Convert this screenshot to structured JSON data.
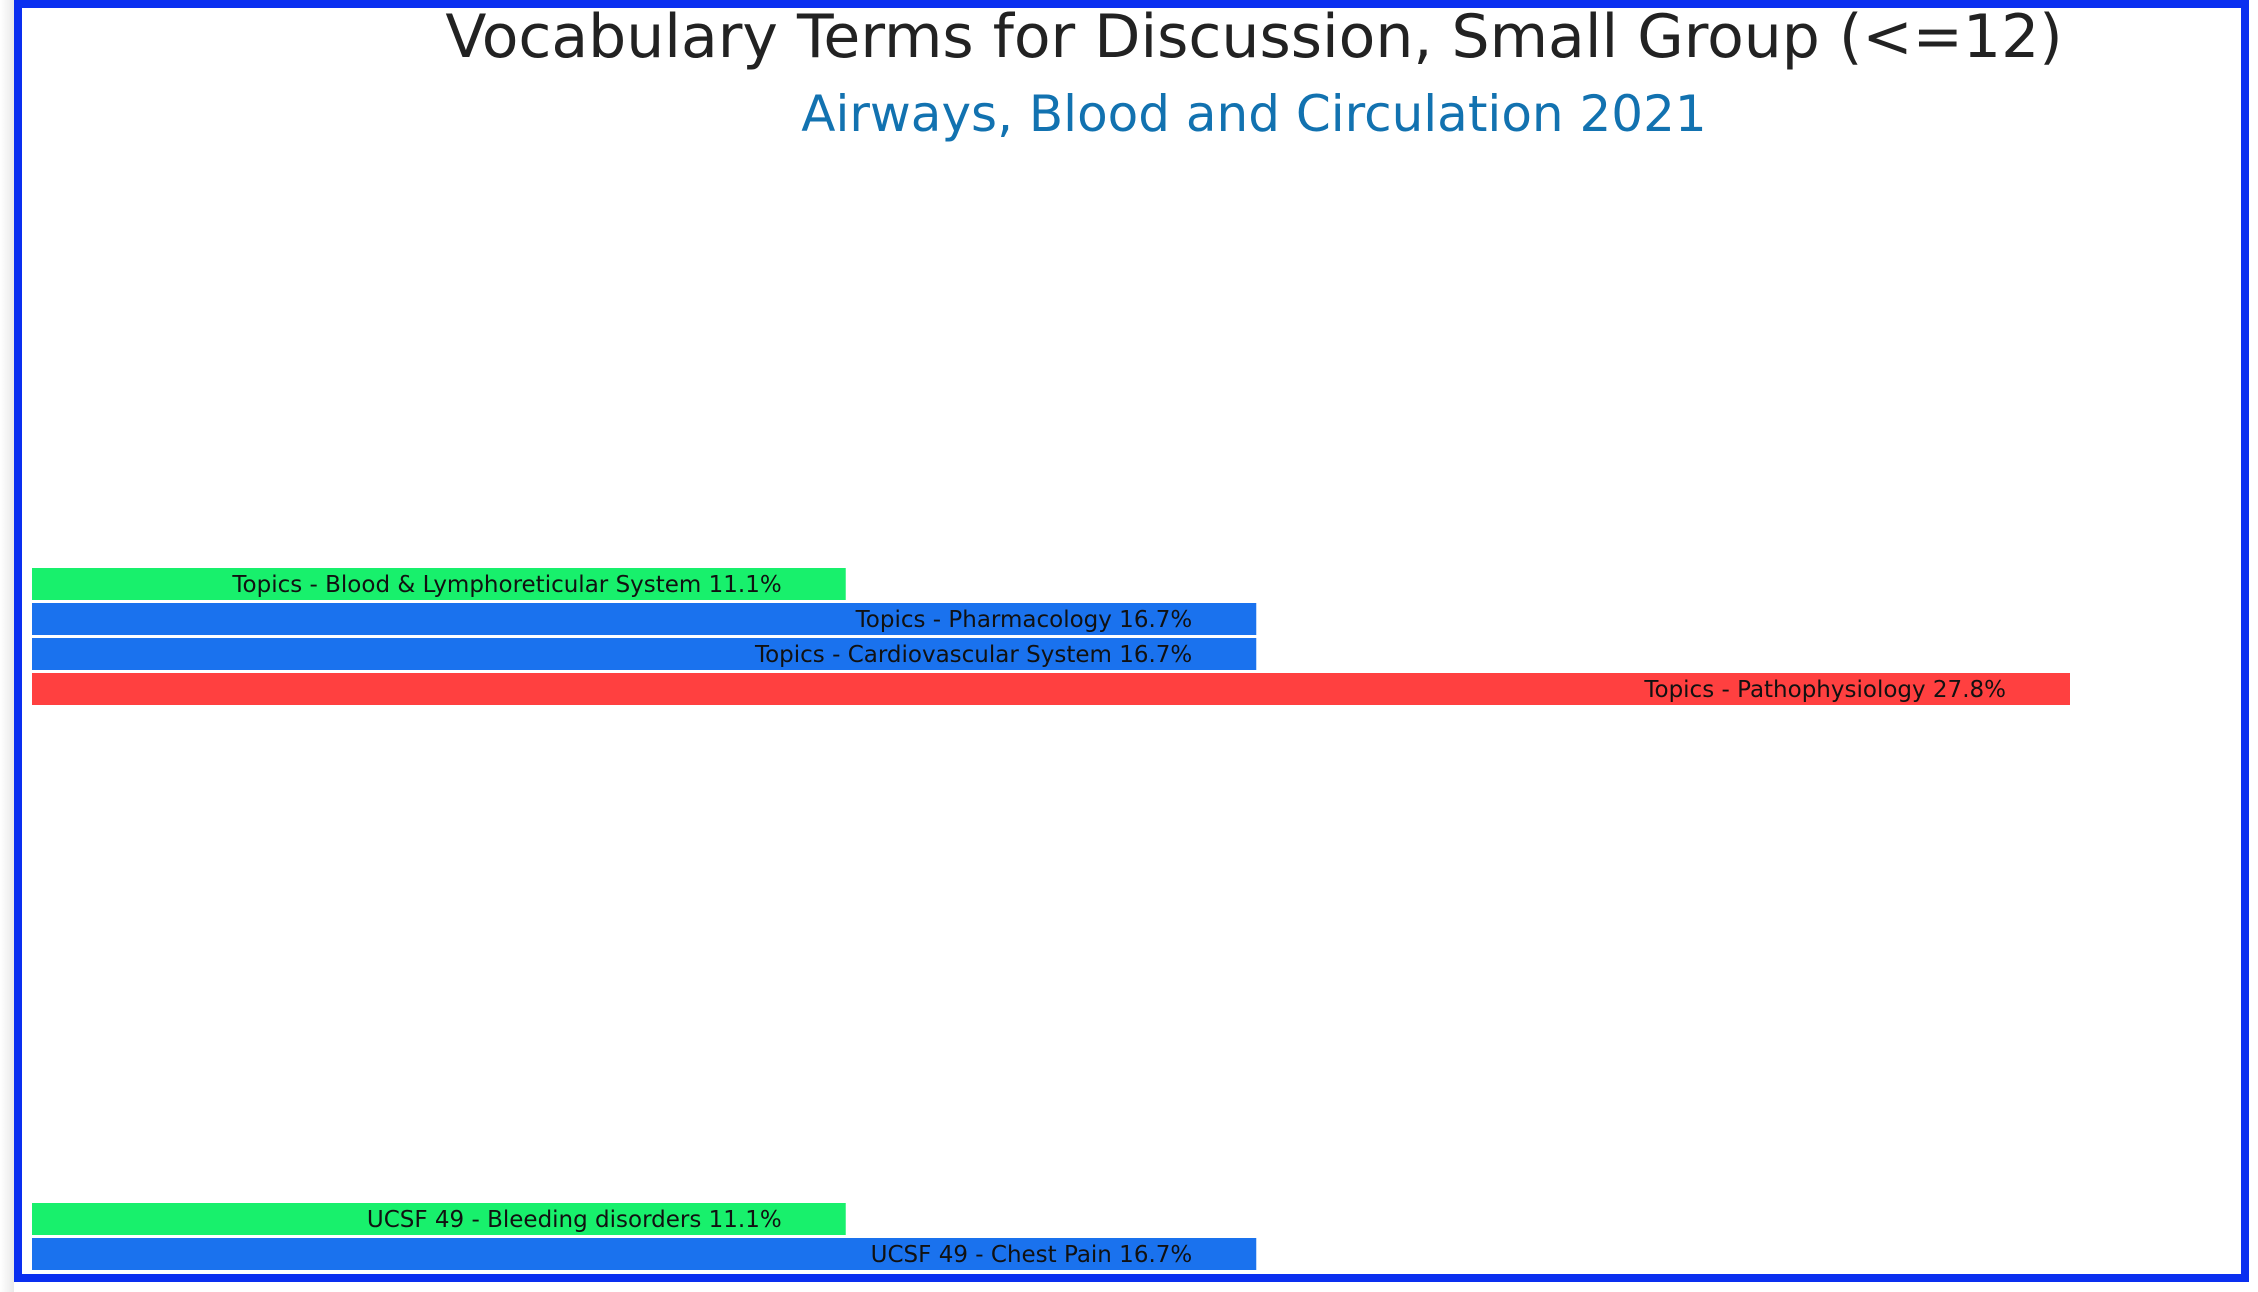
{
  "chart_data": {
    "type": "bar",
    "title": "Vocabulary Terms for Discussion, Small Group (<=12)",
    "subtitle": "Airways, Blood and Circulation 2021",
    "orientation": "horizontal",
    "bars": [
      {
        "label": "Topics - Blood & Lymphoreticular System 11.1%",
        "value": 11.1,
        "color": "#18f06c"
      },
      {
        "label": "Topics - Pharmacology 16.7%",
        "value": 16.7,
        "color": "#1a72ee"
      },
      {
        "label": "Topics - Cardiovascular System 16.7%",
        "value": 16.7,
        "color": "#1a72ee"
      },
      {
        "label": "Topics - Pathophysiology 27.8%",
        "value": 27.8,
        "color": "#ff4040"
      },
      {
        "label": "UCSF 49 - Bleeding disorders 11.1%",
        "value": 11.1,
        "color": "#18f06c"
      },
      {
        "label": "UCSF 49 - Chest Pain 16.7%",
        "value": 16.7,
        "color": "#1a72ee"
      }
    ],
    "xlim": [
      0,
      27.8
    ]
  },
  "colors": {
    "frame": "#0a2ff0",
    "title": "#222222",
    "subtitle": "#1272b0"
  }
}
